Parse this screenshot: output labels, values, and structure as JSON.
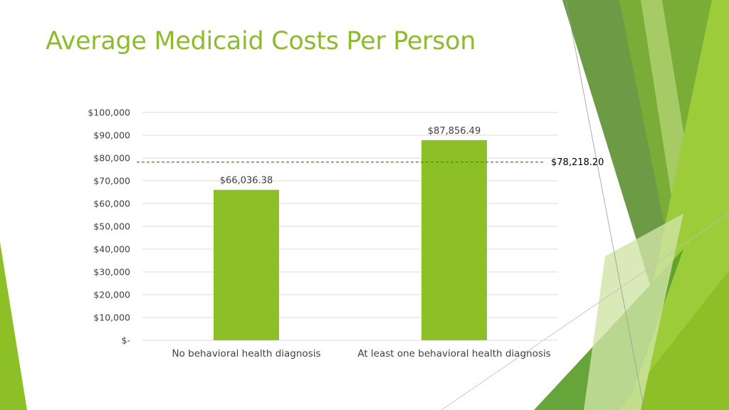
{
  "slide": {
    "title": "Average Medicaid Costs Per Person"
  },
  "theme": {
    "title_color": "#8dbb2e",
    "bar_color": "#8dc026",
    "reference_line_color": "#3e9a2a",
    "gridline_color": "#d9d9d9"
  },
  "chart_data": {
    "type": "bar",
    "title": "",
    "xlabel": "",
    "ylabel": "",
    "categories": [
      "No behavioral health diagnosis",
      "At least one behavioral health diagnosis"
    ],
    "values": [
      66036.38,
      87856.49
    ],
    "data_labels": [
      "$66,036.38",
      "$87,856.49"
    ],
    "ylim": [
      0,
      100000
    ],
    "yticks": [
      0,
      10000,
      20000,
      30000,
      40000,
      50000,
      60000,
      70000,
      80000,
      90000,
      100000
    ],
    "ytick_labels": [
      "$-",
      "$10,000",
      "$20,000",
      "$30,000",
      "$40,000",
      "$50,000",
      "$60,000",
      "$70,000",
      "$80,000",
      "$90,000",
      "$100,000"
    ],
    "grid": true,
    "legend": "none",
    "reference_line": {
      "value": 78218.2,
      "label": "$78,218.20",
      "style": "dashed"
    }
  }
}
